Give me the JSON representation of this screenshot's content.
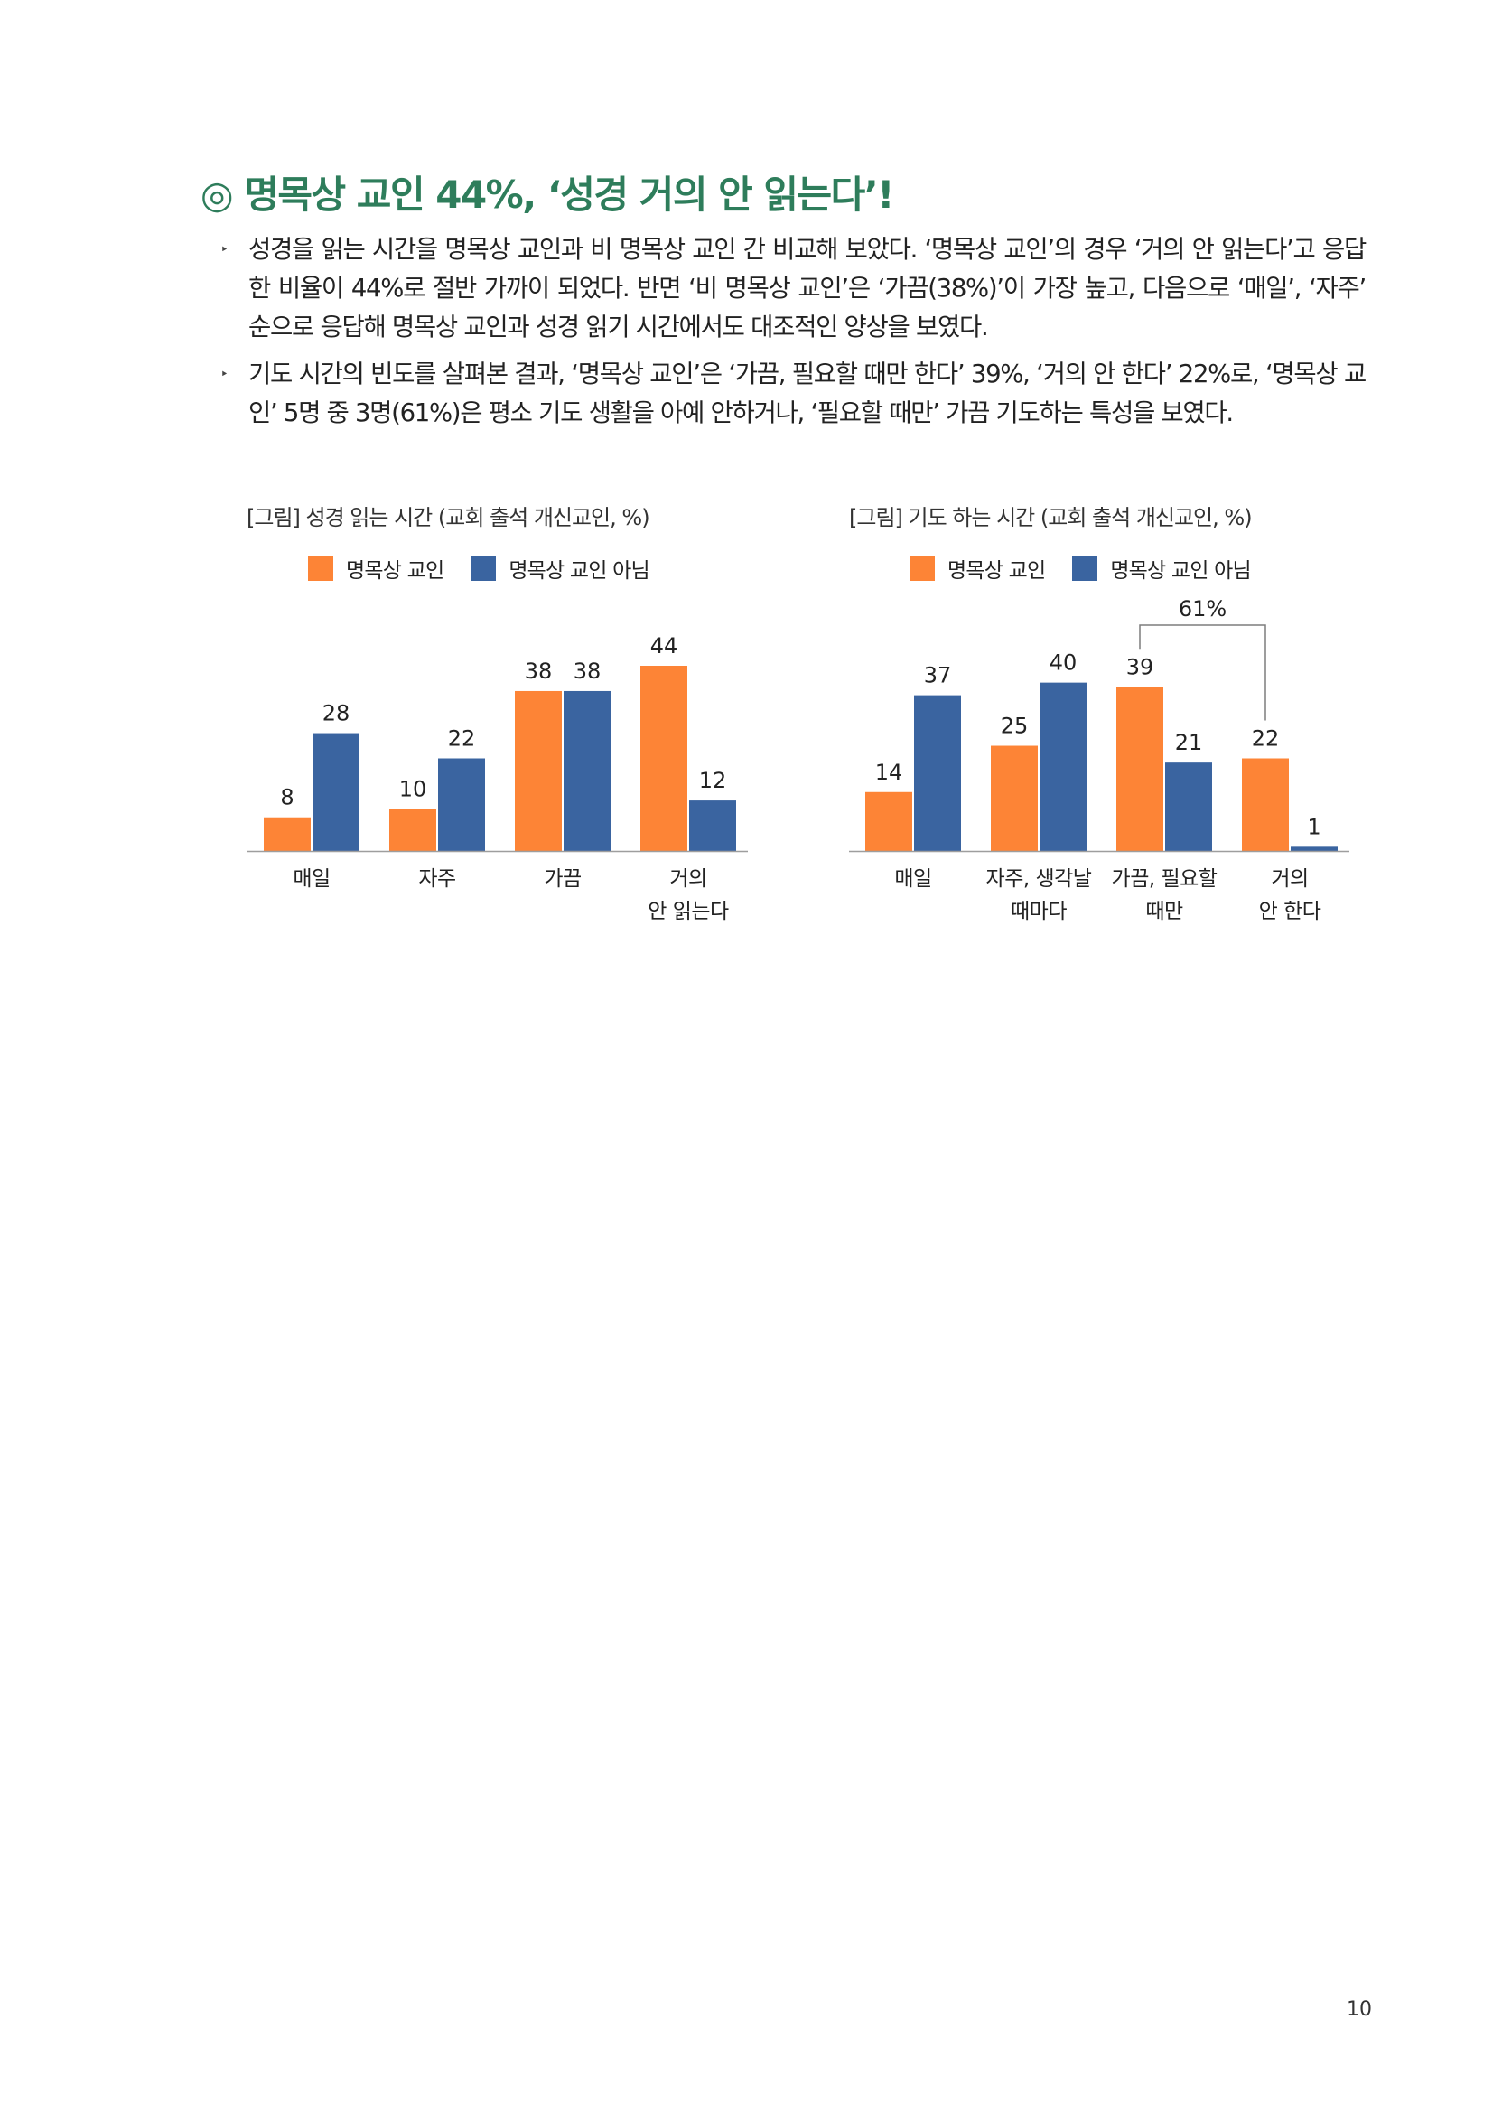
{
  "colors": {
    "heading": "#2e7d5b",
    "orange": "#fd8436",
    "blue": "#3a64a0",
    "axis": "#9e9e9e",
    "bracket": "#7d7d7d"
  },
  "heading": "◎ 명목상 교인 44%, ‘성경 거의 안 읽는다’!",
  "bullets": [
    {
      "marker": "‣",
      "text": "성경을 읽는 시간을 명목상 교인과 비 명목상 교인 간 비교해 보았다. ‘명목상 교인’의 경우 ‘거의 안 읽는다’고 응답한 비율이 44%로 절반 가까이 되었다. 반면 ‘비 명목상 교인’은 ‘가끔(38%)’이 가장 높고, 다음으로 ‘매일’, ‘자주’ 순으로 응답해 명목상 교인과 성경 읽기 시간에서도 대조적인 양상을 보였다."
    },
    {
      "marker": "‣",
      "text": "기도 시간의 빈도를 살펴본 결과, ‘명목상 교인’은 ‘가끔, 필요할 때만 한다’ 39%, ‘거의 안 한다’ 22%로, ‘명목상 교인’ 5명 중 3명(61%)은 평소 기도 생활을 아예 안하거나, ‘필요할 때만’ 가끔 기도하는 특성을 보였다."
    }
  ],
  "legend": {
    "series1": "명목상 교인",
    "series2": "명목상 교인 아님"
  },
  "chart_data": [
    {
      "type": "bar",
      "title": "[그림] 성경 읽는 시간 (교회 출석 개신교인, %)",
      "categories": [
        [
          "매일"
        ],
        [
          "자주"
        ],
        [
          "가끔"
        ],
        [
          "거의",
          "안 읽는다"
        ]
      ],
      "series": [
        {
          "name": "명목상 교인",
          "values": [
            8,
            10,
            38,
            44
          ]
        },
        {
          "name": "명목상 교인 아님",
          "values": [
            28,
            22,
            38,
            12
          ]
        }
      ],
      "ylim": [
        0,
        44
      ],
      "legend_position": "top",
      "grid": false
    },
    {
      "type": "bar",
      "title": "[그림] 기도 하는 시간 (교회 출석 개신교인, %)",
      "categories": [
        [
          "매일"
        ],
        [
          "자주, 생각날",
          "때마다"
        ],
        [
          "가끔, 필요할",
          "때만"
        ],
        [
          "거의",
          "안 한다"
        ]
      ],
      "series": [
        {
          "name": "명목상 교인",
          "values": [
            14,
            25,
            39,
            22
          ]
        },
        {
          "name": "명목상 교인 아님",
          "values": [
            37,
            40,
            21,
            1
          ]
        }
      ],
      "ylim": [
        0,
        44
      ],
      "legend_position": "top",
      "grid": false,
      "annotation": {
        "label": "61%",
        "from_category": 2,
        "to_category": 3,
        "series": 0
      }
    }
  ],
  "page_number": "10"
}
